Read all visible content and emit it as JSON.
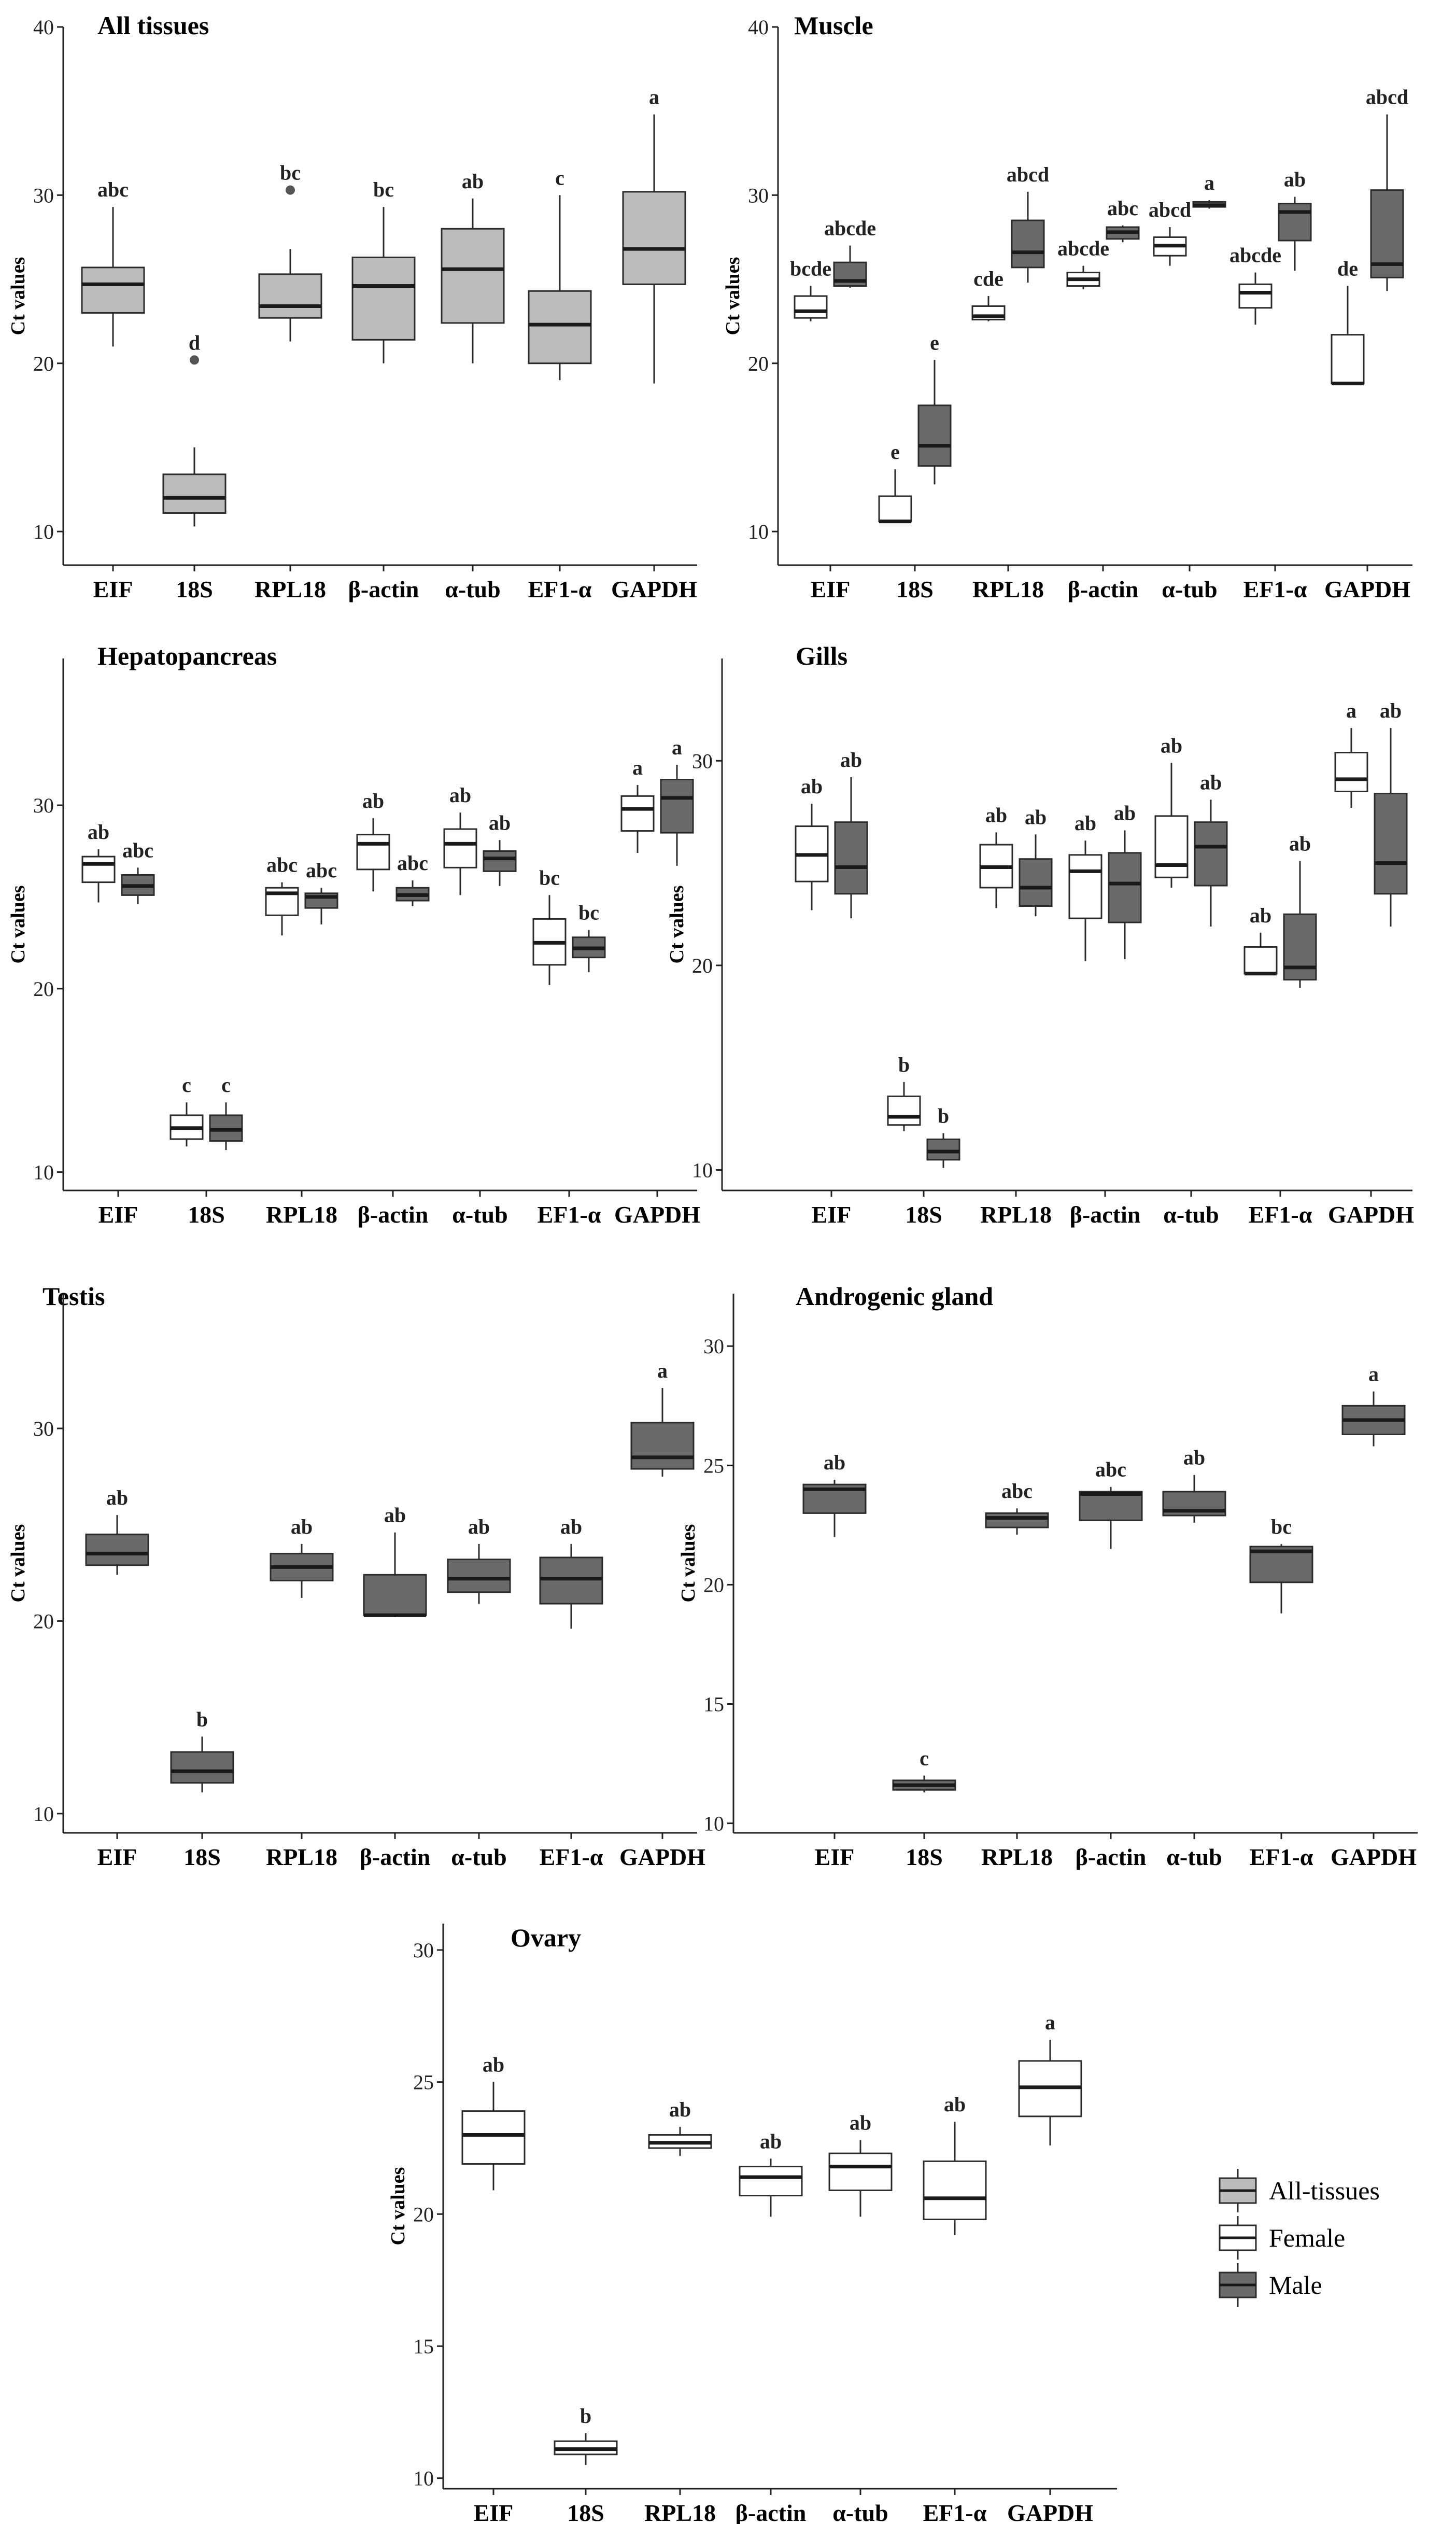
{
  "colors": {
    "all": "#bcbcbc",
    "female": "#ffffff",
    "male": "#6a6a6a",
    "stroke": "#2b2b2b"
  },
  "legend": [
    {
      "key": "all",
      "label": "All-tissues"
    },
    {
      "key": "female",
      "label": "Female"
    },
    {
      "key": "male",
      "label": "Male"
    }
  ],
  "chart_data": [
    {
      "type": "boxplot",
      "title": "All tissues",
      "ylabel": "Ct values",
      "categories": [
        "EIF",
        "18S",
        "RPL18",
        "β-actin",
        "α-tub",
        "EF1-α",
        "GAPDH"
      ],
      "ylim": [
        8,
        40
      ],
      "yticks": [
        10,
        20,
        30,
        40
      ],
      "series": [
        {
          "name": "All-tissues",
          "key": "all",
          "boxes": [
            {
              "cat": 0,
              "wl": 21,
              "q1": 23,
              "med": 24.7,
              "q3": 25.7,
              "wh": 29.3,
              "label": "abc"
            },
            {
              "cat": 1,
              "wl": 10.3,
              "q1": 11.1,
              "med": 12,
              "q3": 13.4,
              "wh": 15,
              "out": [
                20.2
              ],
              "label": "d"
            },
            {
              "cat": 2,
              "wl": 21.3,
              "q1": 22.7,
              "med": 23.4,
              "q3": 25.3,
              "wh": 26.8,
              "out": [
                30.3
              ],
              "label": "bc"
            },
            {
              "cat": 3,
              "wl": 20,
              "q1": 21.4,
              "med": 24.6,
              "q3": 26.3,
              "wh": 29.3,
              "label": "bc"
            },
            {
              "cat": 4,
              "wl": 20,
              "q1": 22.4,
              "med": 25.6,
              "q3": 28,
              "wh": 29.8,
              "label": "ab"
            },
            {
              "cat": 5,
              "wl": 19,
              "q1": 20,
              "med": 22.3,
              "q3": 24.3,
              "wh": 30,
              "label": "c"
            },
            {
              "cat": 6,
              "wl": 18.8,
              "q1": 24.7,
              "med": 26.8,
              "q3": 30.2,
              "wh": 34.8,
              "label": "a"
            }
          ]
        }
      ]
    },
    {
      "type": "boxplot",
      "title": "Muscle",
      "ylabel": "Ct values",
      "categories": [
        "EIF",
        "18S",
        "RPL18",
        "β-actin",
        "α-tub",
        "EF1-α",
        "GAPDH"
      ],
      "ylim": [
        8,
        40
      ],
      "yticks": [
        10,
        20,
        30,
        40
      ],
      "series": [
        {
          "name": "Female",
          "key": "female",
          "boxes": [
            {
              "cat": 0,
              "wl": 22.5,
              "q1": 22.7,
              "med": 23.1,
              "q3": 24,
              "wh": 24.6,
              "label": "bcde"
            },
            {
              "cat": 1,
              "wl": 10.5,
              "q1": 10.6,
              "med": 10.6,
              "q3": 12.1,
              "wh": 13.7,
              "label": "e"
            },
            {
              "cat": 2,
              "wl": 22.5,
              "q1": 22.6,
              "med": 22.8,
              "q3": 23.4,
              "wh": 24,
              "label": "cde"
            },
            {
              "cat": 3,
              "wl": 24.4,
              "q1": 24.6,
              "med": 25,
              "q3": 25.4,
              "wh": 25.8,
              "label": "abcde"
            },
            {
              "cat": 4,
              "wl": 25.8,
              "q1": 26.4,
              "med": 27,
              "q3": 27.5,
              "wh": 28.1,
              "label": "abcd"
            },
            {
              "cat": 5,
              "wl": 22.3,
              "q1": 23.3,
              "med": 24.2,
              "q3": 24.7,
              "wh": 25.4,
              "label": "abcde"
            },
            {
              "cat": 6,
              "wl": 18.8,
              "q1": 18.8,
              "med": 18.8,
              "q3": 21.7,
              "wh": 24.6,
              "label": "de"
            }
          ]
        },
        {
          "name": "Male",
          "key": "male",
          "boxes": [
            {
              "cat": 0,
              "wl": 24.5,
              "q1": 24.6,
              "med": 24.9,
              "q3": 26,
              "wh": 27,
              "label": "abcde"
            },
            {
              "cat": 1,
              "wl": 12.8,
              "q1": 13.9,
              "med": 15.1,
              "q3": 17.5,
              "wh": 20.2,
              "label": "e"
            },
            {
              "cat": 2,
              "wl": 24.8,
              "q1": 25.7,
              "med": 26.6,
              "q3": 28.5,
              "wh": 30.2,
              "label": "abcd"
            },
            {
              "cat": 3,
              "wl": 27.2,
              "q1": 27.4,
              "med": 27.8,
              "q3": 28.1,
              "wh": 28.2,
              "label": "abc"
            },
            {
              "cat": 4,
              "wl": 29.2,
              "q1": 29.3,
              "med": 29.4,
              "q3": 29.6,
              "wh": 29.7,
              "label": "a"
            },
            {
              "cat": 5,
              "wl": 25.5,
              "q1": 27.3,
              "med": 29,
              "q3": 29.5,
              "wh": 29.9,
              "label": "ab"
            },
            {
              "cat": 6,
              "wl": 24.3,
              "q1": 25.1,
              "med": 25.9,
              "q3": 30.3,
              "wh": 34.8,
              "label": "abcd"
            }
          ]
        }
      ]
    },
    {
      "type": "boxplot",
      "title": "Hepatopancreas",
      "ylabel": "Ct values",
      "categories": [
        "EIF",
        "18S",
        "RPL18",
        "β-actin",
        "α-tub",
        "EF1-α",
        "GAPDH"
      ],
      "ylim": [
        9,
        38
      ],
      "yticks": [
        10,
        20,
        30
      ],
      "series": [
        {
          "name": "Female",
          "key": "female",
          "boxes": [
            {
              "cat": 0,
              "wl": 24.7,
              "q1": 25.8,
              "med": 26.8,
              "q3": 27.2,
              "wh": 27.6,
              "label": "ab"
            },
            {
              "cat": 1,
              "wl": 11.4,
              "q1": 11.8,
              "med": 12.4,
              "q3": 13.1,
              "wh": 13.8,
              "label": "c"
            },
            {
              "cat": 2,
              "wl": 22.9,
              "q1": 24,
              "med": 25.2,
              "q3": 25.5,
              "wh": 25.8,
              "label": "abc"
            },
            {
              "cat": 3,
              "wl": 25.3,
              "q1": 26.5,
              "med": 27.9,
              "q3": 28.4,
              "wh": 29.3,
              "label": "ab"
            },
            {
              "cat": 4,
              "wl": 25.1,
              "q1": 26.6,
              "med": 27.9,
              "q3": 28.7,
              "wh": 29.6,
              "label": "ab"
            },
            {
              "cat": 5,
              "wl": 20.2,
              "q1": 21.3,
              "med": 22.5,
              "q3": 23.8,
              "wh": 25.1,
              "label": "bc"
            },
            {
              "cat": 6,
              "wl": 27.4,
              "q1": 28.6,
              "med": 29.8,
              "q3": 30.5,
              "wh": 31.1,
              "label": "a"
            }
          ]
        },
        {
          "name": "Male",
          "key": "male",
          "boxes": [
            {
              "cat": 0,
              "wl": 24.6,
              "q1": 25.1,
              "med": 25.6,
              "q3": 26.2,
              "wh": 26.6,
              "label": "abc"
            },
            {
              "cat": 1,
              "wl": 11.2,
              "q1": 11.7,
              "med": 12.3,
              "q3": 13.1,
              "wh": 13.8,
              "label": "c"
            },
            {
              "cat": 2,
              "wl": 23.5,
              "q1": 24.4,
              "med": 25,
              "q3": 25.2,
              "wh": 25.5,
              "label": "abc"
            },
            {
              "cat": 3,
              "wl": 24.5,
              "q1": 24.8,
              "med": 25.1,
              "q3": 25.5,
              "wh": 25.9,
              "label": "abc"
            },
            {
              "cat": 4,
              "wl": 25.6,
              "q1": 26.4,
              "med": 27.1,
              "q3": 27.5,
              "wh": 28.1,
              "label": "ab"
            },
            {
              "cat": 5,
              "wl": 20.9,
              "q1": 21.7,
              "med": 22.2,
              "q3": 22.8,
              "wh": 23.2,
              "label": "bc"
            },
            {
              "cat": 6,
              "wl": 26.7,
              "q1": 28.5,
              "med": 30.4,
              "q3": 31.4,
              "wh": 32.2,
              "label": "a"
            }
          ]
        }
      ]
    },
    {
      "type": "boxplot",
      "title": "Gills",
      "ylabel": "Ct values",
      "categories": [
        "EIF",
        "18S",
        "RPL18",
        "β-actin",
        "α-tub",
        "EF1-α",
        "GAPDH"
      ],
      "ylim": [
        9,
        35
      ],
      "yticks": [
        10,
        20,
        30
      ],
      "series": [
        {
          "name": "Female",
          "key": "female",
          "boxes": [
            {
              "cat": 0,
              "wl": 22.7,
              "q1": 24.1,
              "med": 25.4,
              "q3": 26.8,
              "wh": 27.9,
              "label": "ab"
            },
            {
              "cat": 1,
              "wl": 11.9,
              "q1": 12.2,
              "med": 12.6,
              "q3": 13.6,
              "wh": 14.3,
              "label": "b"
            },
            {
              "cat": 2,
              "wl": 22.8,
              "q1": 23.8,
              "med": 24.8,
              "q3": 25.9,
              "wh": 26.5,
              "label": "ab"
            },
            {
              "cat": 3,
              "wl": 20.2,
              "q1": 22.3,
              "med": 24.6,
              "q3": 25.4,
              "wh": 26.1,
              "label": "ab"
            },
            {
              "cat": 4,
              "wl": 23.8,
              "q1": 24.3,
              "med": 24.9,
              "q3": 27.3,
              "wh": 29.9,
              "label": "ab"
            },
            {
              "cat": 5,
              "wl": 19.6,
              "q1": 19.6,
              "med": 19.6,
              "q3": 20.9,
              "wh": 21.6,
              "label": "ab"
            },
            {
              "cat": 6,
              "wl": 27.7,
              "q1": 28.5,
              "med": 29.1,
              "q3": 30.4,
              "wh": 31.6,
              "label": "a"
            }
          ]
        },
        {
          "name": "Male",
          "key": "male",
          "boxes": [
            {
              "cat": 0,
              "wl": 22.3,
              "q1": 23.5,
              "med": 24.8,
              "q3": 27,
              "wh": 29.2,
              "label": "ab"
            },
            {
              "cat": 1,
              "wl": 10.1,
              "q1": 10.5,
              "med": 10.9,
              "q3": 11.5,
              "wh": 11.8,
              "label": "b"
            },
            {
              "cat": 2,
              "wl": 22.4,
              "q1": 22.9,
              "med": 23.8,
              "q3": 25.2,
              "wh": 26.4,
              "label": "ab"
            },
            {
              "cat": 3,
              "wl": 20.3,
              "q1": 22.1,
              "med": 24,
              "q3": 25.5,
              "wh": 26.6,
              "label": "ab"
            },
            {
              "cat": 4,
              "wl": 21.9,
              "q1": 23.9,
              "med": 25.8,
              "q3": 27,
              "wh": 28.1,
              "label": "ab"
            },
            {
              "cat": 5,
              "wl": 18.9,
              "q1": 19.3,
              "med": 19.9,
              "q3": 22.5,
              "wh": 25.1,
              "label": "ab"
            },
            {
              "cat": 6,
              "wl": 21.9,
              "q1": 23.5,
              "med": 25,
              "q3": 28.4,
              "wh": 31.6,
              "label": "ab"
            }
          ]
        }
      ]
    },
    {
      "type": "boxplot",
      "title": "Testis",
      "ylabel": "Ct values",
      "categories": [
        "EIF",
        "18S",
        "RPL18",
        "β-actin",
        "α-tub",
        "EF1-α",
        "GAPDH"
      ],
      "ylim": [
        9,
        37
      ],
      "yticks": [
        10,
        20,
        30
      ],
      "series": [
        {
          "name": "Male",
          "key": "male",
          "boxes": [
            {
              "cat": 0,
              "wl": 22.4,
              "q1": 22.9,
              "med": 23.5,
              "q3": 24.5,
              "wh": 25.5,
              "label": "ab"
            },
            {
              "cat": 1,
              "wl": 11.1,
              "q1": 11.6,
              "med": 12.2,
              "q3": 13.2,
              "wh": 14,
              "label": "b"
            },
            {
              "cat": 2,
              "wl": 21.2,
              "q1": 22.1,
              "med": 22.8,
              "q3": 23.5,
              "wh": 24,
              "label": "ab"
            },
            {
              "cat": 3,
              "wl": 20.2,
              "q1": 20.3,
              "med": 20.3,
              "q3": 22.4,
              "wh": 24.6,
              "label": "ab"
            },
            {
              "cat": 4,
              "wl": 20.9,
              "q1": 21.5,
              "med": 22.2,
              "q3": 23.2,
              "wh": 24,
              "label": "ab"
            },
            {
              "cat": 5,
              "wl": 19.6,
              "q1": 20.9,
              "med": 22.2,
              "q3": 23.3,
              "wh": 24,
              "label": "ab"
            },
            {
              "cat": 6,
              "wl": 27.5,
              "q1": 27.9,
              "med": 28.5,
              "q3": 30.3,
              "wh": 32.1,
              "label": "a"
            }
          ]
        }
      ]
    },
    {
      "type": "boxplot",
      "title": "Androgenic gland",
      "ylabel": "Ct values",
      "categories": [
        "EIF",
        "18S",
        "RPL18",
        "β-actin",
        "α-tub",
        "EF1-α",
        "GAPDH"
      ],
      "ylim": [
        9.6,
        32.2
      ],
      "yticks": [
        10,
        15,
        20,
        25,
        30
      ],
      "series": [
        {
          "name": "Male",
          "key": "male",
          "boxes": [
            {
              "cat": 0,
              "wl": 22,
              "q1": 23,
              "med": 24,
              "q3": 24.2,
              "wh": 24.4,
              "label": "ab"
            },
            {
              "cat": 1,
              "wl": 11.3,
              "q1": 11.4,
              "med": 11.6,
              "q3": 11.8,
              "wh": 12,
              "label": "c"
            },
            {
              "cat": 2,
              "wl": 22.1,
              "q1": 22.4,
              "med": 22.8,
              "q3": 23,
              "wh": 23.2,
              "label": "abc"
            },
            {
              "cat": 3,
              "wl": 21.5,
              "q1": 22.7,
              "med": 23.8,
              "q3": 23.9,
              "wh": 24.1,
              "label": "abc"
            },
            {
              "cat": 4,
              "wl": 22.6,
              "q1": 22.9,
              "med": 23.1,
              "q3": 23.9,
              "wh": 24.6,
              "label": "ab"
            },
            {
              "cat": 5,
              "wl": 18.8,
              "q1": 20.1,
              "med": 21.4,
              "q3": 21.6,
              "wh": 21.7,
              "label": "bc"
            },
            {
              "cat": 6,
              "wl": 25.8,
              "q1": 26.3,
              "med": 26.9,
              "q3": 27.5,
              "wh": 28.1,
              "label": "a"
            }
          ]
        }
      ]
    },
    {
      "type": "boxplot",
      "title": "Ovary",
      "ylabel": "Ct values",
      "categories": [
        "EIF",
        "18S",
        "RPL18",
        "β-actin",
        "α-tub",
        "EF1-α",
        "GAPDH"
      ],
      "ylim": [
        9.6,
        31
      ],
      "yticks": [
        10,
        15,
        20,
        25,
        30
      ],
      "series": [
        {
          "name": "Female",
          "key": "female",
          "boxes": [
            {
              "cat": 0,
              "wl": 20.9,
              "q1": 21.9,
              "med": 23,
              "q3": 23.9,
              "wh": 25,
              "label": "ab"
            },
            {
              "cat": 1,
              "wl": 10.5,
              "q1": 10.9,
              "med": 11.1,
              "q3": 11.4,
              "wh": 11.7,
              "label": "b"
            },
            {
              "cat": 2,
              "wl": 22.2,
              "q1": 22.5,
              "med": 22.7,
              "q3": 23,
              "wh": 23.3,
              "label": "ab"
            },
            {
              "cat": 3,
              "wl": 19.9,
              "q1": 20.7,
              "med": 21.4,
              "q3": 21.8,
              "wh": 22.1,
              "label": "ab"
            },
            {
              "cat": 4,
              "wl": 19.9,
              "q1": 20.9,
              "med": 21.8,
              "q3": 22.3,
              "wh": 22.8,
              "label": "ab"
            },
            {
              "cat": 5,
              "wl": 19.2,
              "q1": 19.8,
              "med": 20.6,
              "q3": 22,
              "wh": 23.5,
              "label": "ab"
            },
            {
              "cat": 6,
              "wl": 22.6,
              "q1": 23.7,
              "med": 24.8,
              "q3": 25.8,
              "wh": 26.6,
              "label": "a"
            }
          ]
        }
      ]
    }
  ]
}
